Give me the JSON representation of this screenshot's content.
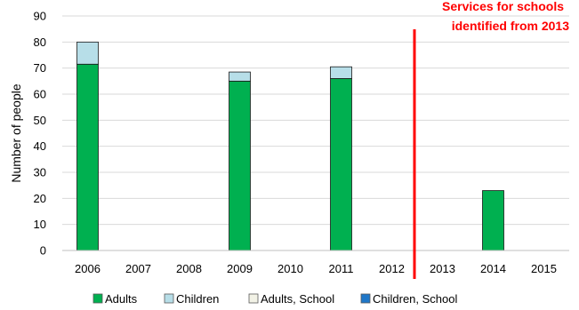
{
  "chart_data": {
    "type": "bar",
    "stacked": true,
    "categories": [
      "2006",
      "2007",
      "2008",
      "2009",
      "2010",
      "2011",
      "2012",
      "2013",
      "2014",
      "2015"
    ],
    "series": [
      {
        "name": "Adults",
        "color": "#00b050",
        "values": [
          71.5,
          0,
          0,
          65,
          0,
          66,
          0,
          0,
          23,
          0
        ]
      },
      {
        "name": "Children",
        "color": "#b7dee8",
        "values": [
          8.5,
          0,
          0,
          3.5,
          0,
          4.5,
          0,
          0,
          0,
          0
        ]
      },
      {
        "name": "Adults, School",
        "color": "#f2f2e6",
        "values": [
          0,
          0,
          0,
          0,
          0,
          0,
          0,
          0,
          0,
          0
        ]
      },
      {
        "name": "Children, School",
        "color": "#1f77c8",
        "values": [
          0,
          0,
          0,
          0,
          0,
          0,
          0,
          0,
          0,
          0
        ]
      }
    ],
    "ylabel": "Number of people",
    "xlabel": "",
    "ylim": [
      0,
      90
    ],
    "yticks": [
      "0",
      "10",
      "20",
      "30",
      "40",
      "50",
      "60",
      "70",
      "80",
      "90"
    ],
    "grid": true,
    "legend_position": "bottom",
    "annotation": {
      "lines": [
        "Services for schools",
        "identified from 2013"
      ],
      "color": "#ff0000",
      "between_categories": [
        "2012",
        "2013"
      ]
    }
  }
}
